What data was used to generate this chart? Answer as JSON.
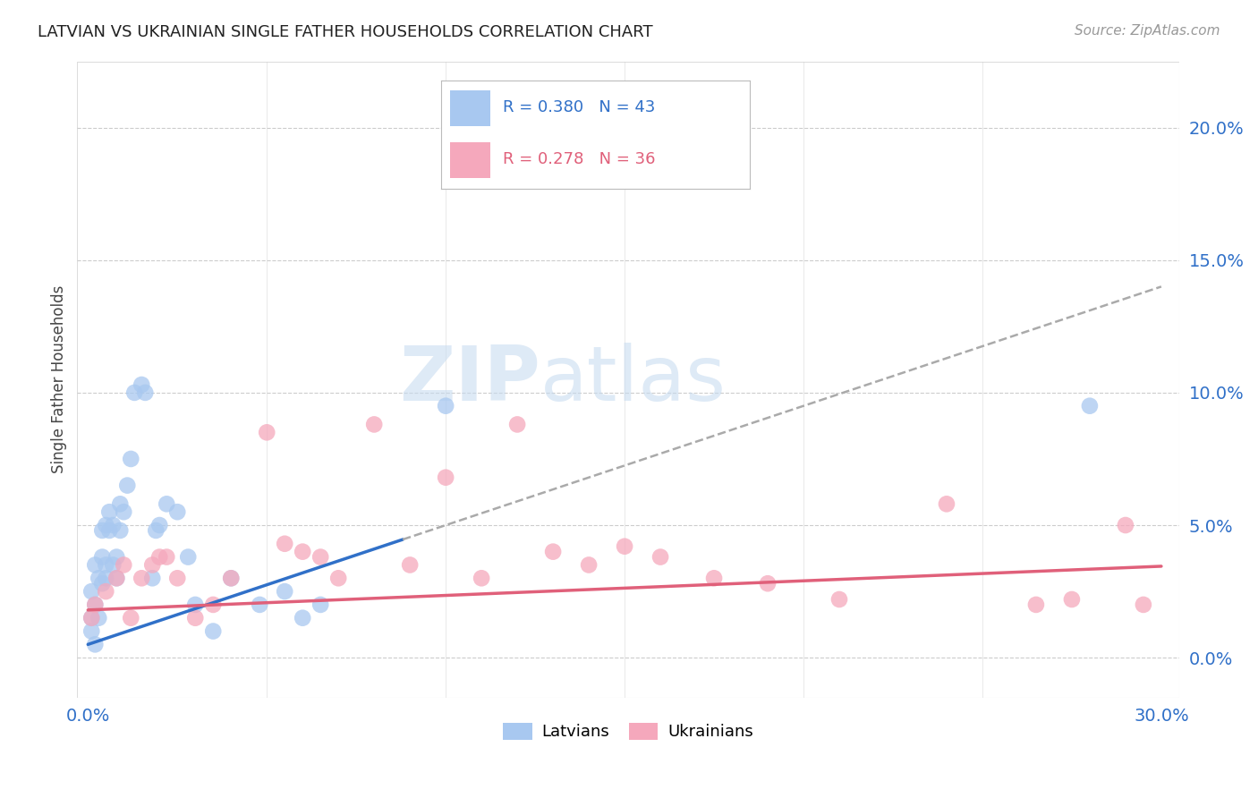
{
  "title": "LATVIAN VS UKRAINIAN SINGLE FATHER HOUSEHOLDS CORRELATION CHART",
  "source": "Source: ZipAtlas.com",
  "ylabel": "Single Father Households",
  "xlim": [
    0.0,
    0.3
  ],
  "ylim": [
    0.0,
    0.22
  ],
  "ytick_labels": [
    "0.0%",
    "5.0%",
    "10.0%",
    "15.0%",
    "20.0%"
  ],
  "ytick_vals": [
    0.0,
    0.05,
    0.1,
    0.15,
    0.2
  ],
  "xtick_labels": [
    "0.0%",
    "30.0%"
  ],
  "xtick_vals": [
    0.0,
    0.3
  ],
  "latvian_color": "#A8C8F0",
  "ukrainian_color": "#F5A8BC",
  "trend_blue": "#3070C8",
  "trend_pink": "#E0607A",
  "trend_dashed_color": "#AAAAAA",
  "R_latvian": 0.38,
  "N_latvian": 43,
  "R_ukrainian": 0.278,
  "N_ukrainian": 36,
  "latvians_x": [
    0.001,
    0.001,
    0.001,
    0.002,
    0.002,
    0.002,
    0.003,
    0.003,
    0.004,
    0.004,
    0.004,
    0.005,
    0.005,
    0.005,
    0.006,
    0.006,
    0.007,
    0.007,
    0.008,
    0.008,
    0.009,
    0.009,
    0.01,
    0.011,
    0.012,
    0.013,
    0.015,
    0.016,
    0.018,
    0.019,
    0.02,
    0.022,
    0.025,
    0.028,
    0.03,
    0.035,
    0.04,
    0.048,
    0.055,
    0.06,
    0.065,
    0.1,
    0.28
  ],
  "latvians_y": [
    0.01,
    0.015,
    0.025,
    0.005,
    0.02,
    0.035,
    0.015,
    0.03,
    0.028,
    0.038,
    0.048,
    0.03,
    0.05,
    0.035,
    0.048,
    0.055,
    0.035,
    0.05,
    0.03,
    0.038,
    0.048,
    0.058,
    0.055,
    0.065,
    0.075,
    0.1,
    0.103,
    0.1,
    0.03,
    0.048,
    0.05,
    0.058,
    0.055,
    0.038,
    0.02,
    0.01,
    0.03,
    0.02,
    0.025,
    0.015,
    0.02,
    0.095,
    0.095
  ],
  "ukrainians_x": [
    0.001,
    0.002,
    0.005,
    0.008,
    0.01,
    0.012,
    0.015,
    0.018,
    0.02,
    0.022,
    0.025,
    0.03,
    0.035,
    0.04,
    0.05,
    0.055,
    0.06,
    0.065,
    0.07,
    0.08,
    0.09,
    0.1,
    0.11,
    0.12,
    0.13,
    0.14,
    0.15,
    0.16,
    0.175,
    0.19,
    0.21,
    0.24,
    0.265,
    0.275,
    0.29,
    0.295
  ],
  "ukrainians_y": [
    0.015,
    0.02,
    0.025,
    0.03,
    0.035,
    0.015,
    0.03,
    0.035,
    0.038,
    0.038,
    0.03,
    0.015,
    0.02,
    0.03,
    0.085,
    0.043,
    0.04,
    0.038,
    0.03,
    0.088,
    0.035,
    0.068,
    0.03,
    0.088,
    0.04,
    0.035,
    0.042,
    0.038,
    0.03,
    0.028,
    0.022,
    0.058,
    0.02,
    0.022,
    0.05,
    0.02
  ],
  "blue_trend_slope": 0.45,
  "blue_trend_intercept": 0.005,
  "pink_trend_slope": 0.055,
  "pink_trend_intercept": 0.018,
  "watermark_zip": "ZIP",
  "watermark_atlas": "atlas",
  "background_color": "#FFFFFF",
  "grid_color": "#CCCCCC",
  "border_color": "#DDDDDD"
}
